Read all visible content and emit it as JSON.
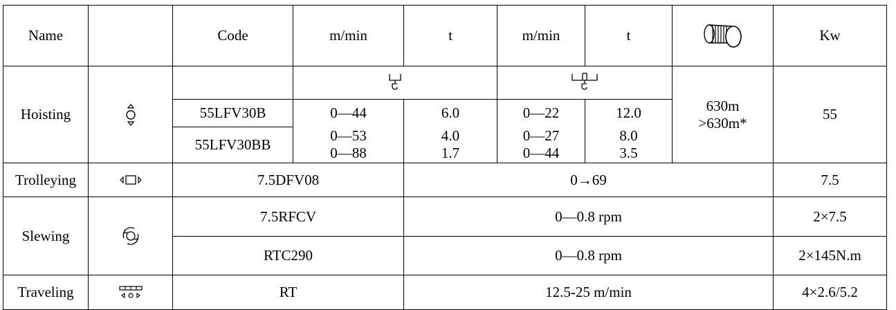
{
  "table": {
    "header": {
      "name": "Name",
      "code": "Code",
      "speed_single": "m/min",
      "load_single": "t",
      "speed_double": "m/min",
      "load_double": "t",
      "drum_icon": "rope-drum-icon",
      "power": "Kw"
    },
    "hoisting": {
      "label": "Hoisting",
      "icon": "hoisting-icon",
      "single_hook_icon": "single-fall-hook-icon",
      "double_hook_icon": "double-fall-hook-icon",
      "rope_length": "630m\n>630m*",
      "power": "55",
      "rows": [
        {
          "code": "55LFV30B",
          "speed_single": "0—44",
          "load_single": "6.0",
          "speed_double": "0—22",
          "load_double": "12.0"
        },
        {
          "code": "55LFV30BB",
          "speed_single": "0—53\n0—88",
          "load_single": "4.0\n1.7",
          "speed_double": "0—27\n0—44",
          "load_double": "8.0\n3.5"
        }
      ]
    },
    "trolleying": {
      "label": "Trolleying",
      "icon": "trolleying-icon",
      "code": "7.5DFV08",
      "speed": "0→69",
      "power": "7.5"
    },
    "slewing": {
      "label": "Slewing",
      "icon": "slewing-icon",
      "rows": [
        {
          "code": "7.5RFCV",
          "speed": "0—0.8 rpm",
          "power": "2×7.5"
        },
        {
          "code": "RTC290",
          "speed": "0—0.8 rpm",
          "power": "2×145N.m"
        }
      ]
    },
    "traveling": {
      "label": "Traveling",
      "icon": "traveling-icon",
      "code": "RT",
      "speed": "12.5-25 m/min",
      "power": "4×2.6/5.2"
    }
  }
}
